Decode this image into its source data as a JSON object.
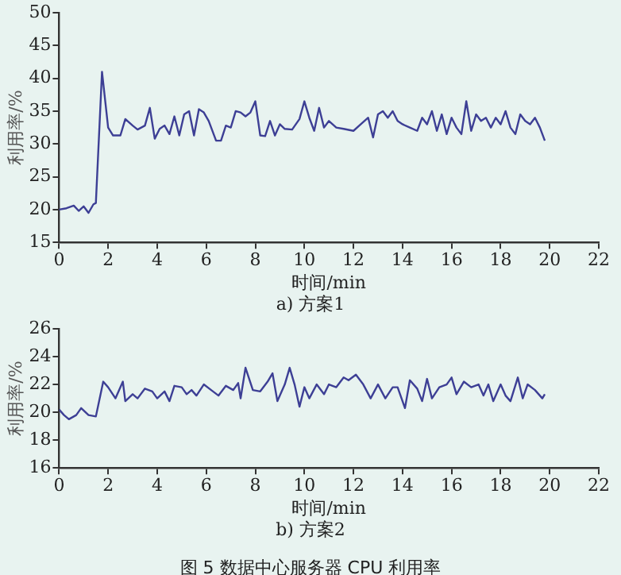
{
  "chart_data": [
    {
      "type": "line",
      "xlabel": "时间/min",
      "ylabel": "利用率/%",
      "xlim": [
        0,
        22
      ],
      "xticks": [
        0,
        2,
        4,
        6,
        8,
        10,
        12,
        14,
        16,
        18,
        20,
        22
      ],
      "ylim": [
        15,
        50
      ],
      "yticks": [
        15,
        20,
        25,
        30,
        35,
        40,
        45,
        50
      ],
      "grid": false,
      "legend": false,
      "marker": "none",
      "annotations": [
        "a) 方案1"
      ],
      "series": [
        {
          "color": "#3d3f95",
          "x": [
            0,
            0.3,
            0.6,
            0.8,
            1.0,
            1.2,
            1.4,
            1.5,
            1.75,
            2.0,
            2.2,
            2.5,
            2.7,
            3.0,
            3.2,
            3.5,
            3.7,
            3.9,
            4.1,
            4.3,
            4.5,
            4.7,
            4.9,
            5.1,
            5.3,
            5.5,
            5.7,
            5.9,
            6.1,
            6.4,
            6.6,
            6.8,
            7.0,
            7.2,
            7.4,
            7.6,
            7.8,
            8.0,
            8.2,
            8.4,
            8.6,
            8.8,
            9.0,
            9.2,
            9.5,
            9.8,
            10.0,
            10.2,
            10.4,
            10.6,
            10.8,
            11.0,
            11.3,
            11.6,
            12.0,
            12.3,
            12.6,
            12.8,
            13.0,
            13.2,
            13.4,
            13.6,
            13.8,
            14.0,
            14.3,
            14.6,
            14.8,
            15.0,
            15.2,
            15.4,
            15.6,
            15.8,
            16.0,
            16.2,
            16.4,
            16.6,
            16.8,
            17.0,
            17.2,
            17.4,
            17.6,
            17.8,
            18.0,
            18.2,
            18.4,
            18.6,
            18.8,
            19.0,
            19.2,
            19.4,
            19.6,
            19.8
          ],
          "values": [
            20,
            20.2,
            20.6,
            19.8,
            20.5,
            19.5,
            20.8,
            21,
            41,
            32.5,
            31.3,
            31.3,
            33.8,
            32.8,
            32.2,
            32.8,
            35.5,
            30.8,
            32.3,
            32.8,
            31.5,
            34.2,
            31.3,
            34.5,
            35,
            31.3,
            35.3,
            34.8,
            33.5,
            30.5,
            30.5,
            32.8,
            32.5,
            35,
            34.8,
            34.2,
            34.8,
            36.5,
            31.3,
            31.2,
            33.5,
            31.3,
            33,
            32.3,
            32.2,
            33.8,
            36.5,
            34,
            32,
            35.5,
            32.5,
            33.5,
            32.5,
            32.3,
            32,
            33,
            34,
            31,
            34.5,
            35,
            34,
            35,
            33.5,
            33,
            32.5,
            32,
            34,
            33,
            35,
            32,
            34.5,
            31.5,
            34,
            32.5,
            31.5,
            36.5,
            32,
            34.5,
            33.5,
            34,
            32.5,
            34,
            33,
            35,
            32.5,
            31.5,
            34.5,
            33.5,
            33,
            34,
            32.5,
            30.5
          ]
        }
      ]
    },
    {
      "type": "line",
      "xlabel": "时间/min",
      "ylabel": "利用率/%",
      "xlim": [
        0,
        22
      ],
      "xticks": [
        0,
        2,
        4,
        6,
        8,
        10,
        12,
        14,
        16,
        18,
        20,
        22
      ],
      "ylim": [
        16,
        26
      ],
      "yticks": [
        16,
        18,
        20,
        22,
        24,
        26
      ],
      "grid": false,
      "legend": false,
      "marker": "none",
      "annotations": [
        "b) 方案2",
        "图 5 数据中心服务器 CPU 利用率"
      ],
      "series": [
        {
          "color": "#3d3f95",
          "x": [
            0,
            0.2,
            0.4,
            0.7,
            0.9,
            1.2,
            1.5,
            1.8,
            2.0,
            2.3,
            2.6,
            2.7,
            3.0,
            3.2,
            3.5,
            3.8,
            4.0,
            4.3,
            4.5,
            4.7,
            5.0,
            5.2,
            5.4,
            5.6,
            5.9,
            6.2,
            6.5,
            6.8,
            7.1,
            7.3,
            7.4,
            7.6,
            7.9,
            8.2,
            8.5,
            8.7,
            8.9,
            9.2,
            9.4,
            9.6,
            9.8,
            10.0,
            10.2,
            10.5,
            10.8,
            11.0,
            11.3,
            11.6,
            11.8,
            12.1,
            12.4,
            12.7,
            13.0,
            13.3,
            13.6,
            13.8,
            14.1,
            14.3,
            14.6,
            14.8,
            15.0,
            15.2,
            15.5,
            15.8,
            16.0,
            16.2,
            16.5,
            16.8,
            17.1,
            17.3,
            17.5,
            17.7,
            18.0,
            18.2,
            18.4,
            18.7,
            18.9,
            19.1,
            19.4,
            19.7,
            19.8
          ],
          "values": [
            20.2,
            19.8,
            19.5,
            19.8,
            20.3,
            19.8,
            19.7,
            22.2,
            21.8,
            21,
            22.2,
            20.8,
            21.3,
            21,
            21.7,
            21.5,
            21,
            21.5,
            20.8,
            21.9,
            21.8,
            21.3,
            21.6,
            21.2,
            22,
            21.6,
            21.2,
            21.9,
            21.6,
            22.1,
            21,
            23.2,
            21.6,
            21.5,
            22.2,
            22.8,
            20.8,
            22,
            23.2,
            22,
            20.4,
            21.8,
            21,
            22,
            21.3,
            22,
            21.8,
            22.5,
            22.3,
            22.7,
            22,
            21,
            22,
            21,
            21.8,
            21.8,
            20.3,
            22.3,
            21.7,
            20.8,
            22.4,
            21,
            21.8,
            22,
            22.5,
            21.3,
            22.2,
            21.8,
            22,
            21.2,
            22,
            20.8,
            22,
            21.2,
            20.8,
            22.5,
            21,
            22,
            21.6,
            21,
            21.3
          ]
        }
      ]
    }
  ]
}
